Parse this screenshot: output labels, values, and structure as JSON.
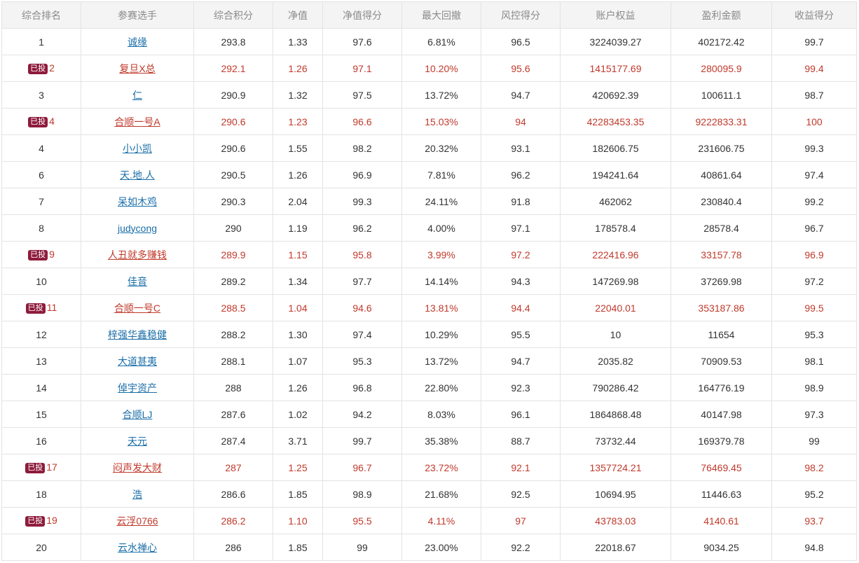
{
  "table": {
    "headers": [
      "综合排名",
      "参赛选手",
      "综合积分",
      "净值",
      "净值得分",
      "最大回撤",
      "风控得分",
      "账户权益",
      "盈利金额",
      "收益得分"
    ],
    "rows": [
      {
        "badge": "",
        "rank": "1",
        "name": "诚缘",
        "score": "293.8",
        "nav": "1.33",
        "nav_score": "97.6",
        "drawdown": "6.81%",
        "risk_score": "96.5",
        "equity": "3224039.27",
        "profit": "402172.42",
        "return_score": "99.7"
      },
      {
        "badge": "已投",
        "rank": "2",
        "name": "复旦X总",
        "score": "292.1",
        "nav": "1.26",
        "nav_score": "97.1",
        "drawdown": "10.20%",
        "risk_score": "95.6",
        "equity": "1415177.69",
        "profit": "280095.9",
        "return_score": "99.4"
      },
      {
        "badge": "",
        "rank": "3",
        "name": "仁",
        "score": "290.9",
        "nav": "1.32",
        "nav_score": "97.5",
        "drawdown": "13.72%",
        "risk_score": "94.7",
        "equity": "420692.39",
        "profit": "100611.1",
        "return_score": "98.7"
      },
      {
        "badge": "已投",
        "rank": "4",
        "name": "合顺一号A",
        "score": "290.6",
        "nav": "1.23",
        "nav_score": "96.6",
        "drawdown": "15.03%",
        "risk_score": "94",
        "equity": "42283453.35",
        "profit": "9222833.31",
        "return_score": "100"
      },
      {
        "badge": "",
        "rank": "4",
        "name": "小小凯",
        "score": "290.6",
        "nav": "1.55",
        "nav_score": "98.2",
        "drawdown": "20.32%",
        "risk_score": "93.1",
        "equity": "182606.75",
        "profit": "231606.75",
        "return_score": "99.3"
      },
      {
        "badge": "",
        "rank": "6",
        "name": "天.地.人",
        "score": "290.5",
        "nav": "1.26",
        "nav_score": "96.9",
        "drawdown": "7.81%",
        "risk_score": "96.2",
        "equity": "194241.64",
        "profit": "40861.64",
        "return_score": "97.4"
      },
      {
        "badge": "",
        "rank": "7",
        "name": "呆如木鸡",
        "score": "290.3",
        "nav": "2.04",
        "nav_score": "99.3",
        "drawdown": "24.11%",
        "risk_score": "91.8",
        "equity": "462062",
        "profit": "230840.4",
        "return_score": "99.2"
      },
      {
        "badge": "",
        "rank": "8",
        "name": "judycong",
        "score": "290",
        "nav": "1.19",
        "nav_score": "96.2",
        "drawdown": "4.00%",
        "risk_score": "97.1",
        "equity": "178578.4",
        "profit": "28578.4",
        "return_score": "96.7"
      },
      {
        "badge": "已投",
        "rank": "9",
        "name": "人丑就多赚钱",
        "score": "289.9",
        "nav": "1.15",
        "nav_score": "95.8",
        "drawdown": "3.99%",
        "risk_score": "97.2",
        "equity": "222416.96",
        "profit": "33157.78",
        "return_score": "96.9"
      },
      {
        "badge": "",
        "rank": "10",
        "name": "佳音",
        "score": "289.2",
        "nav": "1.34",
        "nav_score": "97.7",
        "drawdown": "14.14%",
        "risk_score": "94.3",
        "equity": "147269.98",
        "profit": "37269.98",
        "return_score": "97.2"
      },
      {
        "badge": "已投",
        "rank": "11",
        "name": "合顺一号C",
        "score": "288.5",
        "nav": "1.04",
        "nav_score": "94.6",
        "drawdown": "13.81%",
        "risk_score": "94.4",
        "equity": "22040.01",
        "profit": "353187.86",
        "return_score": "99.5"
      },
      {
        "badge": "",
        "rank": "12",
        "name": "梓强华鑫稳健",
        "score": "288.2",
        "nav": "1.30",
        "nav_score": "97.4",
        "drawdown": "10.29%",
        "risk_score": "95.5",
        "equity": "10",
        "profit": "11654",
        "return_score": "95.3"
      },
      {
        "badge": "",
        "rank": "13",
        "name": "大道甚夷",
        "score": "288.1",
        "nav": "1.07",
        "nav_score": "95.3",
        "drawdown": "13.72%",
        "risk_score": "94.7",
        "equity": "2035.82",
        "profit": "70909.53",
        "return_score": "98.1"
      },
      {
        "badge": "",
        "rank": "14",
        "name": "倬宇资产",
        "score": "288",
        "nav": "1.26",
        "nav_score": "96.8",
        "drawdown": "22.80%",
        "risk_score": "92.3",
        "equity": "790286.42",
        "profit": "164776.19",
        "return_score": "98.9"
      },
      {
        "badge": "",
        "rank": "15",
        "name": "合顺LJ",
        "score": "287.6",
        "nav": "1.02",
        "nav_score": "94.2",
        "drawdown": "8.03%",
        "risk_score": "96.1",
        "equity": "1864868.48",
        "profit": "40147.98",
        "return_score": "97.3"
      },
      {
        "badge": "",
        "rank": "16",
        "name": "天元",
        "score": "287.4",
        "nav": "3.71",
        "nav_score": "99.7",
        "drawdown": "35.38%",
        "risk_score": "88.7",
        "equity": "73732.44",
        "profit": "169379.78",
        "return_score": "99"
      },
      {
        "badge": "已投",
        "rank": "17",
        "name": "闷声发大财",
        "score": "287",
        "nav": "1.25",
        "nav_score": "96.7",
        "drawdown": "23.72%",
        "risk_score": "92.1",
        "equity": "1357724.21",
        "profit": "76469.45",
        "return_score": "98.2"
      },
      {
        "badge": "",
        "rank": "18",
        "name": "浩",
        "score": "286.6",
        "nav": "1.85",
        "nav_score": "98.9",
        "drawdown": "21.68%",
        "risk_score": "92.5",
        "equity": "10694.95",
        "profit": "11446.63",
        "return_score": "95.2"
      },
      {
        "badge": "已投",
        "rank": "19",
        "name": "云浮0766",
        "score": "286.2",
        "nav": "1.10",
        "nav_score": "95.5",
        "drawdown": "4.11%",
        "risk_score": "97",
        "equity": "43783.03",
        "profit": "4140.61",
        "return_score": "93.7"
      },
      {
        "badge": "",
        "rank": "20",
        "name": "云水禅心",
        "score": "286",
        "nav": "1.85",
        "nav_score": "99",
        "drawdown": "23.00%",
        "risk_score": "92.2",
        "equity": "22018.67",
        "profit": "9034.25",
        "return_score": "94.8"
      }
    ]
  },
  "colors": {
    "invested_text": "#c0392b",
    "badge_bg": "#8e1b3b",
    "link": "#1a6ea8",
    "header_bg": "#f4f4f4"
  }
}
